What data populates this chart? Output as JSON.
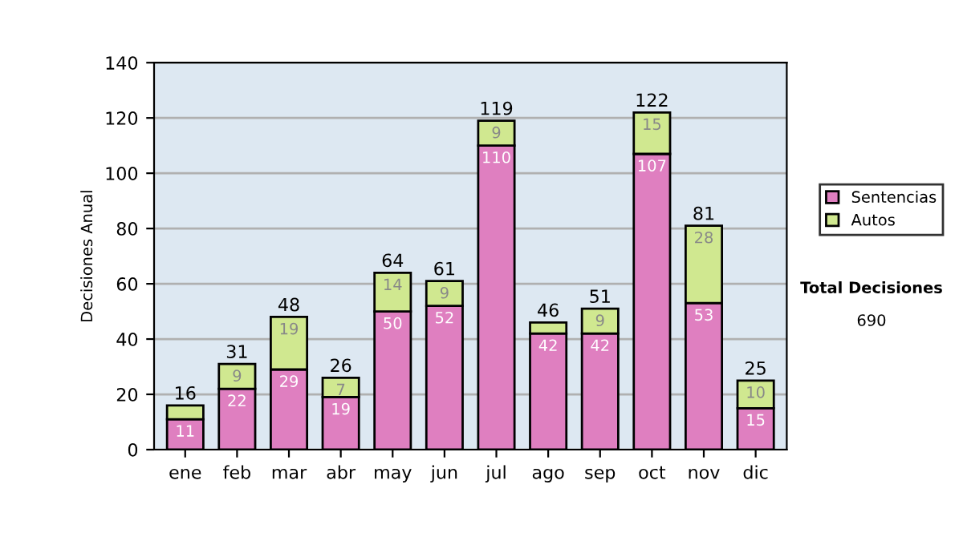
{
  "chart_data": {
    "type": "bar",
    "stacked": true,
    "ylabel": "Decisiones Anual",
    "categories": [
      "ene",
      "feb",
      "mar",
      "abr",
      "may",
      "jun",
      "jul",
      "ago",
      "sep",
      "oct",
      "nov",
      "dic"
    ],
    "series": [
      {
        "name": "Sentencias",
        "color": "#df7fc0",
        "values": [
          11,
          22,
          29,
          19,
          50,
          52,
          110,
          42,
          42,
          107,
          53,
          15
        ],
        "value_labels": [
          "11",
          "22",
          "29",
          "19",
          "50",
          "52",
          "110",
          "42",
          "42",
          "107",
          "53",
          "15"
        ]
      },
      {
        "name": "Autos",
        "color": "#d0e890",
        "values": [
          5,
          9,
          19,
          7,
          14,
          9,
          9,
          4,
          9,
          15,
          28,
          10
        ],
        "value_labels": [
          null,
          "9",
          "19",
          "7",
          "14",
          "9",
          "9",
          null,
          "9",
          "15",
          "28",
          "10"
        ]
      }
    ],
    "totals": [
      "16",
      "31",
      "48",
      "26",
      "64",
      "61",
      "119",
      "46",
      "51",
      "122",
      "81",
      "25"
    ],
    "ylim": [
      0,
      140
    ],
    "yticks": [
      0,
      20,
      40,
      60,
      80,
      100,
      120,
      140
    ],
    "grid": "y",
    "legend": "right",
    "annotations": [
      "Total Decisiones",
      "690"
    ]
  }
}
